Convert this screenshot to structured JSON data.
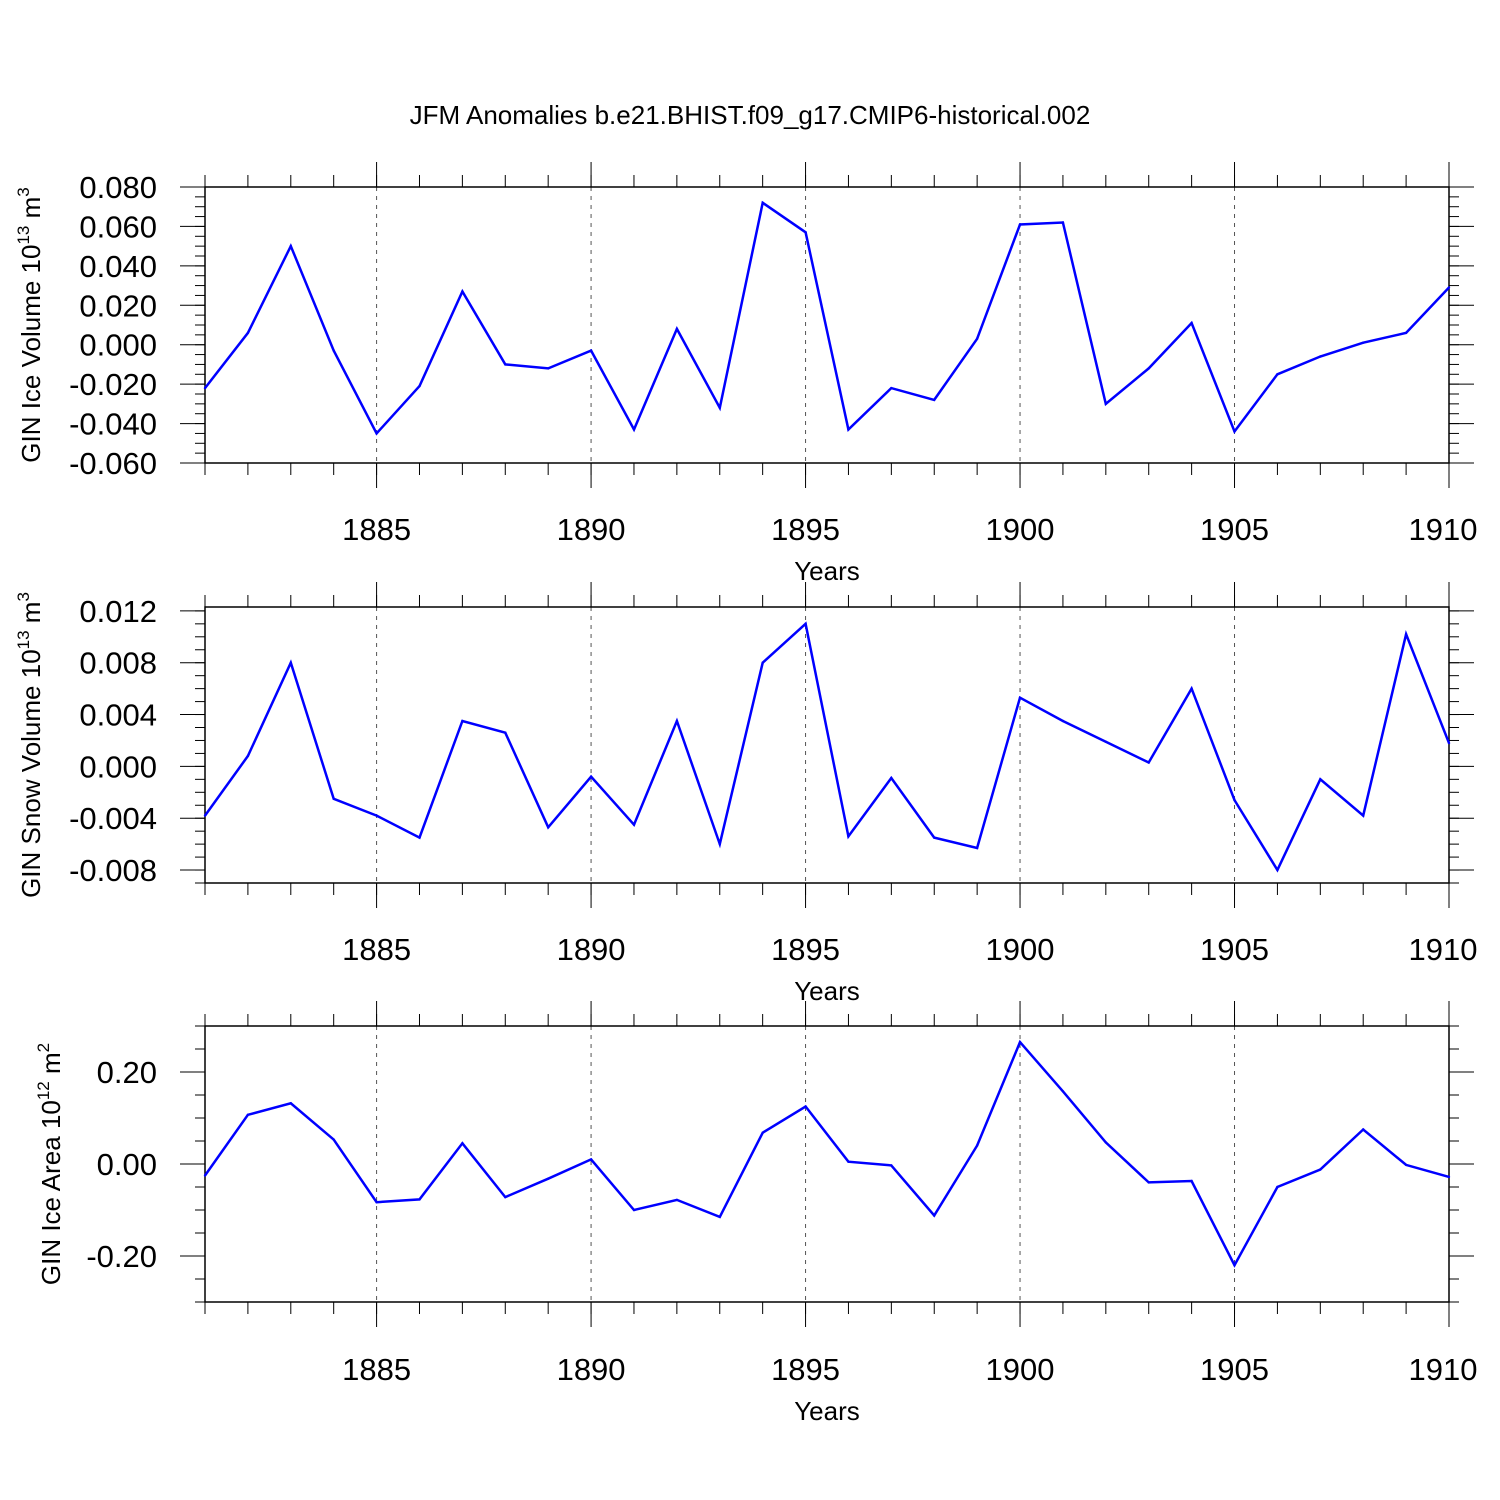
{
  "title": "JFM Anomalies b.e21.BHIST.f09_g17.CMIP6-historical.002",
  "colors": {
    "line": "#0000ff",
    "axis": "#000000",
    "grid": "#555555",
    "background": "#ffffff"
  },
  "chart_data": [
    {
      "type": "line",
      "title": "JFM Anomalies b.e21.BHIST.f09_g17.CMIP6-historical.002",
      "xlabel": "Years",
      "ylabel": "GIN Ice Volume 10",
      "ylabel_exp": "13",
      "ylabel_unit": " m",
      "ylabel_unit_exp": "3",
      "xlim": [
        1881,
        1910
      ],
      "ylim": [
        -0.06,
        0.08
      ],
      "x_ticks": [
        1885,
        1890,
        1895,
        1900,
        1905,
        1910
      ],
      "x_tick_labels": [
        "1885",
        "1890",
        "1895",
        "1900",
        "1905",
        "1910"
      ],
      "y_ticks": [
        -0.06,
        -0.04,
        -0.02,
        0.0,
        0.02,
        0.04,
        0.06,
        0.08
      ],
      "y_tick_labels": [
        "-0.060",
        "-0.040",
        "-0.020",
        "0.000",
        "0.020",
        "0.040",
        "0.060",
        "0.080"
      ],
      "y_minor_step": 0.005,
      "grid": "vertical dashed at major x ticks",
      "series": [
        {
          "name": "GIN Ice Volume",
          "x": [
            1881,
            1882,
            1883,
            1884,
            1885,
            1886,
            1887,
            1888,
            1889,
            1890,
            1891,
            1892,
            1893,
            1894,
            1895,
            1896,
            1897,
            1898,
            1899,
            1900,
            1901,
            1902,
            1903,
            1904,
            1905,
            1906,
            1907,
            1908,
            1909,
            1910
          ],
          "values": [
            -0.022,
            0.006,
            0.05,
            -0.003,
            -0.045,
            -0.021,
            0.027,
            -0.01,
            -0.012,
            -0.003,
            -0.043,
            0.008,
            -0.032,
            0.072,
            0.057,
            -0.043,
            -0.022,
            -0.028,
            0.003,
            0.061,
            0.062,
            -0.03,
            -0.012,
            0.011,
            -0.044,
            -0.015,
            -0.006,
            0.001,
            0.006,
            0.029
          ]
        }
      ]
    },
    {
      "type": "line",
      "xlabel": "Years",
      "ylabel": "GIN Snow Volume 10",
      "ylabel_exp": "13",
      "ylabel_unit": " m",
      "ylabel_unit_exp": "3",
      "xlim": [
        1881,
        1910
      ],
      "ylim": [
        -0.009,
        0.0123
      ],
      "x_ticks": [
        1885,
        1890,
        1895,
        1900,
        1905,
        1910
      ],
      "x_tick_labels": [
        "1885",
        "1890",
        "1895",
        "1900",
        "1905",
        "1910"
      ],
      "y_ticks": [
        -0.008,
        -0.004,
        0.0,
        0.004,
        0.008,
        0.012
      ],
      "y_tick_labels": [
        "-0.008",
        "-0.004",
        "0.000",
        "0.004",
        "0.008",
        "0.012"
      ],
      "y_minor_step": 0.001,
      "grid": "vertical dashed at major x ticks",
      "series": [
        {
          "name": "GIN Snow Volume",
          "x": [
            1881,
            1882,
            1883,
            1884,
            1885,
            1886,
            1887,
            1888,
            1889,
            1890,
            1891,
            1892,
            1893,
            1894,
            1895,
            1896,
            1897,
            1898,
            1899,
            1900,
            1901,
            1902,
            1903,
            1904,
            1905,
            1906,
            1907,
            1908,
            1909,
            1910
          ],
          "values": [
            -0.0038,
            0.0008,
            0.008,
            -0.0025,
            -0.0038,
            -0.0055,
            0.0035,
            0.0026,
            -0.0047,
            -0.0008,
            -0.0045,
            0.0035,
            -0.006,
            0.008,
            0.011,
            -0.0054,
            -0.0009,
            -0.0055,
            -0.0063,
            0.0053,
            0.0035,
            0.0019,
            0.0003,
            0.006,
            -0.0026,
            -0.008,
            -0.001,
            -0.0038,
            0.0102,
            0.0018
          ]
        }
      ]
    },
    {
      "type": "line",
      "xlabel": "Years",
      "ylabel": "GIN Ice Area 10",
      "ylabel_exp": "12",
      "ylabel_unit": " m",
      "ylabel_unit_exp": "2",
      "xlim": [
        1881,
        1910
      ],
      "ylim": [
        -0.3,
        0.3
      ],
      "x_ticks": [
        1885,
        1890,
        1895,
        1900,
        1905,
        1910
      ],
      "x_tick_labels": [
        "1885",
        "1890",
        "1895",
        "1900",
        "1905",
        "1910"
      ],
      "y_ticks": [
        -0.2,
        0.0,
        0.2
      ],
      "y_tick_labels": [
        "-0.20",
        "0.00",
        "0.20"
      ],
      "y_minor_step": 0.05,
      "grid": "vertical dashed at major x ticks",
      "series": [
        {
          "name": "GIN Ice Area",
          "x": [
            1881,
            1882,
            1883,
            1884,
            1885,
            1886,
            1887,
            1888,
            1889,
            1890,
            1891,
            1892,
            1893,
            1894,
            1895,
            1896,
            1897,
            1898,
            1899,
            1900,
            1901,
            1902,
            1903,
            1904,
            1905,
            1906,
            1907,
            1908,
            1909,
            1910
          ],
          "values": [
            -0.025,
            0.107,
            0.132,
            0.053,
            -0.083,
            -0.077,
            0.045,
            -0.072,
            -0.032,
            0.01,
            -0.1,
            -0.078,
            -0.115,
            0.068,
            0.125,
            0.005,
            -0.003,
            -0.112,
            0.04,
            0.265,
            0.158,
            0.047,
            -0.04,
            -0.037,
            -0.22,
            -0.05,
            -0.012,
            0.075,
            -0.002,
            -0.028
          ]
        }
      ]
    }
  ]
}
